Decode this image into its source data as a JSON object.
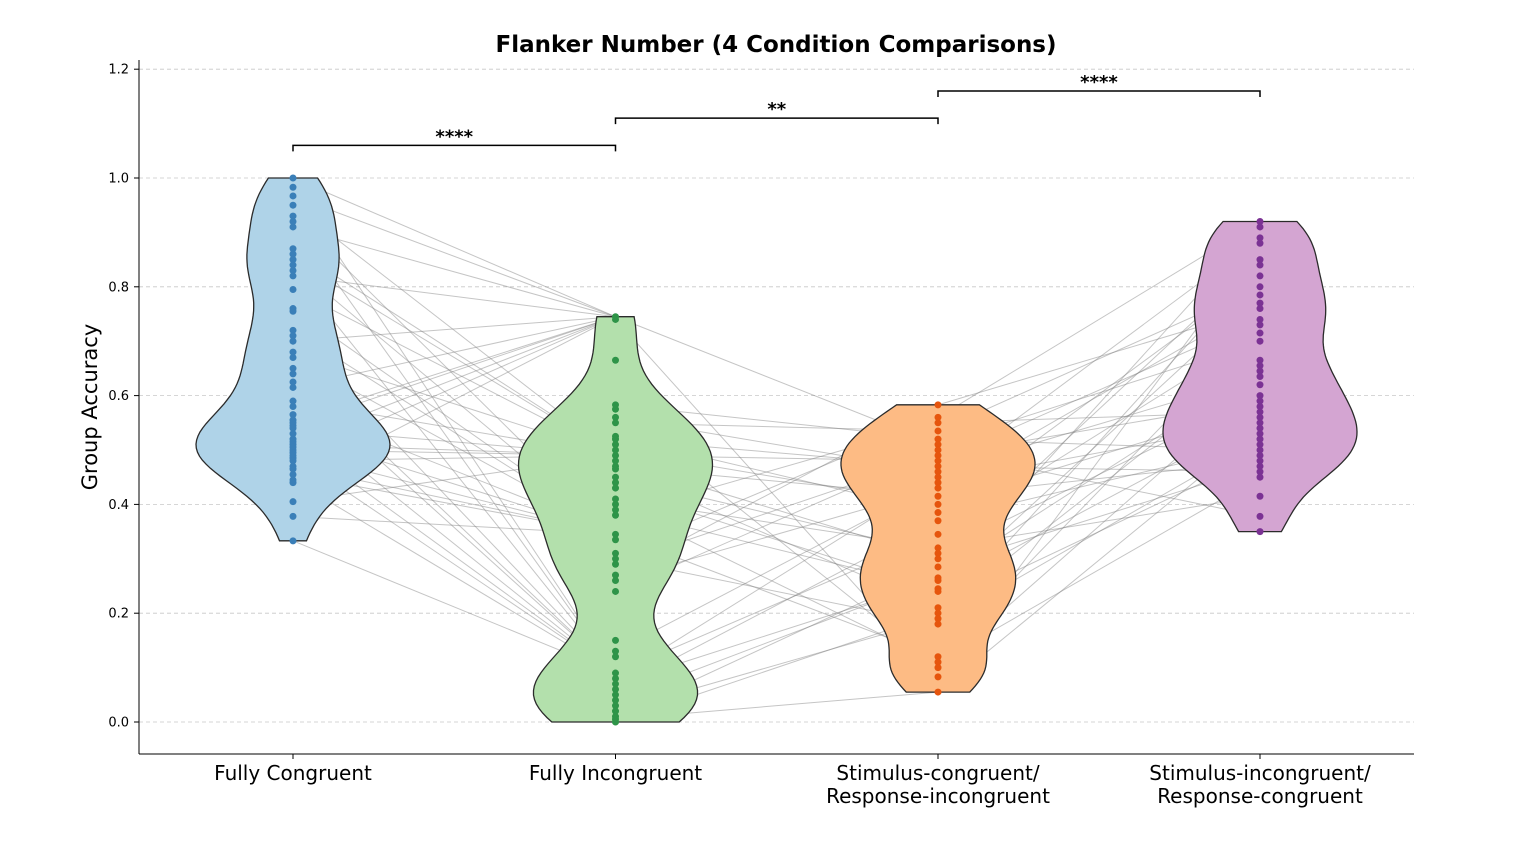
{
  "chart_data": {
    "type": "violin",
    "title": "Flanker Number (4 Condition Comparisons)",
    "xlabel": "",
    "ylabel": "Group Accuracy",
    "ylim": [
      -0.06,
      1.22
    ],
    "yticks": [
      "0.0",
      "0.2",
      "0.4",
      "0.6",
      "0.8",
      "1.0",
      "1.2"
    ],
    "grid": "horizontal dashed",
    "categories": [
      {
        "lines": [
          "Fully Congruent"
        ]
      },
      {
        "lines": [
          "Fully Incongruent"
        ]
      },
      {
        "lines": [
          "Stimulus-congruent/",
          "Response-incongruent"
        ]
      },
      {
        "lines": [
          "Stimulus-incongruent/",
          "Response-congruent"
        ]
      }
    ],
    "series": [
      {
        "fill": "#afd3e8",
        "point_color": "#3a7fb8",
        "min": 0.333,
        "max": 1.0,
        "points": [
          1.0,
          0.983,
          0.967,
          0.95,
          0.93,
          0.92,
          0.91,
          0.87,
          0.86,
          0.85,
          0.84,
          0.83,
          0.82,
          0.795,
          0.76,
          0.755,
          0.72,
          0.71,
          0.7,
          0.68,
          0.67,
          0.65,
          0.64,
          0.625,
          0.615,
          0.59,
          0.58,
          0.565,
          0.555,
          0.55,
          0.545,
          0.54,
          0.53,
          0.52,
          0.515,
          0.51,
          0.505,
          0.5,
          0.495,
          0.49,
          0.485,
          0.48,
          0.47,
          0.465,
          0.455,
          0.445,
          0.44,
          0.405,
          0.378,
          0.333
        ]
      },
      {
        "fill": "#b3e0ac",
        "point_color": "#2e9448",
        "min": 0.0,
        "max": 0.745,
        "points": [
          0.745,
          0.74,
          0.665,
          0.583,
          0.575,
          0.56,
          0.55,
          0.525,
          0.52,
          0.51,
          0.5,
          0.49,
          0.48,
          0.47,
          0.465,
          0.45,
          0.44,
          0.43,
          0.41,
          0.4,
          0.39,
          0.38,
          0.345,
          0.335,
          0.31,
          0.3,
          0.29,
          0.27,
          0.26,
          0.24,
          0.15,
          0.13,
          0.12,
          0.09,
          0.08,
          0.07,
          0.06,
          0.05,
          0.04,
          0.03,
          0.02,
          0.01,
          0.005,
          0.0
        ]
      },
      {
        "fill": "#fdbb84",
        "point_color": "#e6550d",
        "min": 0.055,
        "max": 0.583,
        "points": [
          0.583,
          0.56,
          0.55,
          0.535,
          0.52,
          0.51,
          0.5,
          0.49,
          0.48,
          0.47,
          0.46,
          0.45,
          0.44,
          0.43,
          0.415,
          0.4,
          0.385,
          0.37,
          0.345,
          0.32,
          0.31,
          0.3,
          0.285,
          0.265,
          0.26,
          0.245,
          0.24,
          0.21,
          0.2,
          0.19,
          0.18,
          0.12,
          0.11,
          0.1,
          0.083,
          0.055
        ]
      },
      {
        "fill": "#d4a5d2",
        "point_color": "#7b3294",
        "min": 0.35,
        "max": 0.92,
        "points": [
          0.92,
          0.91,
          0.89,
          0.88,
          0.85,
          0.84,
          0.82,
          0.8,
          0.785,
          0.77,
          0.76,
          0.74,
          0.73,
          0.715,
          0.7,
          0.665,
          0.655,
          0.645,
          0.635,
          0.62,
          0.6,
          0.59,
          0.58,
          0.57,
          0.56,
          0.55,
          0.54,
          0.53,
          0.52,
          0.51,
          0.5,
          0.49,
          0.48,
          0.47,
          0.46,
          0.45,
          0.415,
          0.378,
          0.35
        ]
      }
    ],
    "comparisons": [
      {
        "from": 0,
        "to": 1,
        "y": 1.06,
        "label": "****"
      },
      {
        "from": 1,
        "to": 2,
        "y": 1.11,
        "label": "**"
      },
      {
        "from": 2,
        "to": 3,
        "y": 1.16,
        "label": "****"
      }
    ]
  }
}
